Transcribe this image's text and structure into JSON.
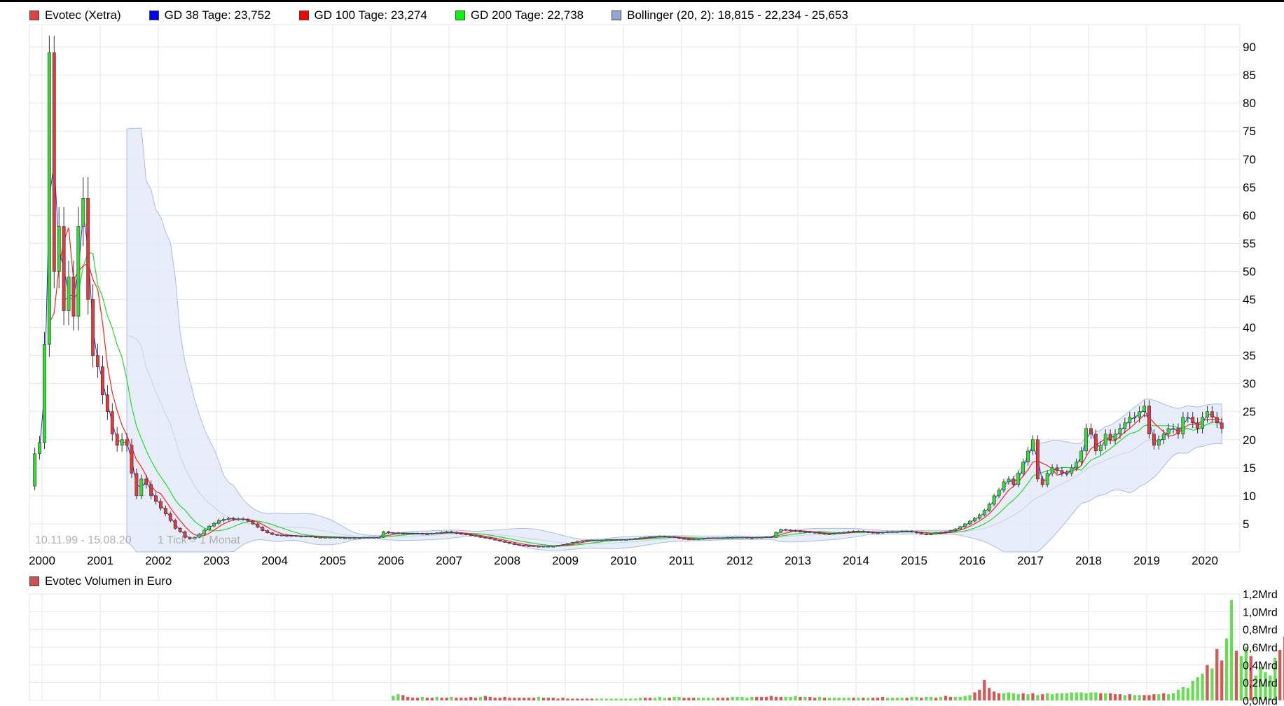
{
  "legend": {
    "items": [
      {
        "label": "Evotec (Xetra)",
        "color": "#e04040"
      },
      {
        "label": "GD 38 Tage: 23,752",
        "color": "#0000ff"
      },
      {
        "label": "GD 100 Tage: 23,274",
        "color": "#ff0000"
      },
      {
        "label": "GD 200 Tage: 22,738",
        "color": "#00ff00"
      },
      {
        "label": "Bollinger (20, 2): 18,815 - 22,234 - 25,653",
        "color": "#8fa8d8"
      }
    ],
    "volume_label": "Evotec Volumen in Euro",
    "volume_color": "#d05050"
  },
  "watermark": {
    "range": "10.11.99 - 15.08.20",
    "tick": "1 Tick = 1 Monat"
  },
  "chart_data": [
    {
      "type": "candlestick",
      "title": "Evotec (Xetra)",
      "x_ticks": [
        "2000",
        "2001",
        "2002",
        "2003",
        "2004",
        "2005",
        "2006",
        "2007",
        "2008",
        "2009",
        "2010",
        "2011",
        "2012",
        "2013",
        "2014",
        "2015",
        "2016",
        "2017",
        "2018",
        "2019",
        "2020"
      ],
      "x_range": [
        "1999-11",
        "2020-08"
      ],
      "y_ticks": [
        "5",
        "10",
        "15",
        "20",
        "25",
        "30",
        "35",
        "40",
        "45",
        "50",
        "55",
        "60",
        "65",
        "70",
        "75",
        "80",
        "85",
        "90"
      ],
      "ylim": [
        0,
        94
      ],
      "grid": true,
      "legend_position": "top-left",
      "monthly_close": [
        17.5,
        19.5,
        37,
        89,
        50,
        58,
        43,
        49,
        42,
        58,
        63,
        45,
        35,
        33,
        28,
        25,
        21,
        19,
        20,
        19,
        14,
        10,
        13,
        12,
        10,
        9,
        7.8,
        6.8,
        5.6,
        4.2,
        3.6,
        2.6,
        2.3,
        2.6,
        3.2,
        3.9,
        4.6,
        5.1,
        5.6,
        5.8,
        6,
        5.8,
        5.9,
        5.8,
        5.5,
        5,
        4.4,
        3.8,
        3.4,
        3.1,
        3,
        2.9,
        2.9,
        2.9,
        2.8,
        2.8,
        2.8,
        2.7,
        2.6,
        2.6,
        2.6,
        2.6,
        2.6,
        2.5,
        2.5,
        2.5,
        2.5,
        2.5,
        2.6,
        2.6,
        2.6,
        2.6,
        3.6,
        3.4,
        3.4,
        3.3,
        3.3,
        3.3,
        3.3,
        3.3,
        3.2,
        3.2,
        3.3,
        3.4,
        3.5,
        3.6,
        3.5,
        3.3,
        3.2,
        3.1,
        2.9,
        2.8,
        2.6,
        2.5,
        2.3,
        2.1,
        1.9,
        1.7,
        1.5,
        1.3,
        1.2,
        1.1,
        1.1,
        1,
        1,
        1,
        1,
        1,
        1.2,
        1.3,
        1.5,
        1.7,
        1.9,
        2,
        2.1,
        2.1,
        2.1,
        2.1,
        2.2,
        2.2,
        2.2,
        2.2,
        2.2,
        2.3,
        2.4,
        2.5,
        2.6,
        2.7,
        2.7,
        2.8,
        2.7,
        2.7,
        2.6,
        2.4,
        2.3,
        2.2,
        2.3,
        2.3,
        2.4,
        2.5,
        2.5,
        2.5,
        2.5,
        2.6,
        2.6,
        2.6,
        2.6,
        2.5,
        2.5,
        2.6,
        2.6,
        2.7,
        2.6,
        3.5,
        4,
        3.9,
        3.8,
        3.7,
        3.6,
        3.6,
        3.5,
        3.4,
        3.3,
        3.2,
        3.2,
        3.3,
        3.4,
        3.5,
        3.6,
        3.7,
        3.7,
        3.6,
        3.5,
        3.4,
        3.4,
        3.5,
        3.6,
        3.6,
        3.6,
        3.7,
        3.7,
        3.6,
        3.4,
        3.2,
        3.1,
        3.2,
        3.4,
        3.5,
        3.6,
        3.8,
        4.1,
        4.5,
        5,
        5.5,
        6,
        6.6,
        7.4,
        8.5,
        10,
        11,
        12.5,
        13,
        12,
        14,
        16,
        18,
        20,
        13,
        12,
        14,
        15,
        14.5,
        14,
        14,
        15,
        16,
        18,
        22,
        21,
        18,
        19,
        21,
        20,
        21,
        22,
        23,
        24,
        24,
        25,
        26,
        21,
        19,
        20,
        21,
        22,
        22,
        21,
        24,
        24,
        23,
        22,
        24,
        25,
        24,
        23,
        22
      ],
      "bollinger_band": {
        "lower": 18.815,
        "middle": 22.234,
        "upper": 25.653
      }
    },
    {
      "type": "bar",
      "title": "Evotec Volumen in Euro",
      "y_ticks": [
        "0,0Mrd",
        "0,2Mrd",
        "0,4Mrd",
        "0,6Mrd",
        "0,8Mrd",
        "1,0Mrd",
        "1,2Mrd"
      ],
      "ylim": [
        0,
        1.2
      ],
      "unit": "Mrd",
      "monthly_values_from_2006": [
        0.05,
        0.07,
        0.06,
        0.04,
        0.03,
        0.03,
        0.04,
        0.03,
        0.03,
        0.04,
        0.03,
        0.03,
        0.04,
        0.03,
        0.03,
        0.03,
        0.04,
        0.03,
        0.04,
        0.05,
        0.04,
        0.03,
        0.03,
        0.04,
        0.03,
        0.03,
        0.03,
        0.03,
        0.03,
        0.03,
        0.04,
        0.03,
        0.03,
        0.03,
        0.02,
        0.03,
        0.02,
        0.02,
        0.02,
        0.02,
        0.02,
        0.02,
        0.02,
        0.02,
        0.02,
        0.02,
        0.02,
        0.02,
        0.02,
        0.02,
        0.02,
        0.03,
        0.03,
        0.03,
        0.03,
        0.04,
        0.03,
        0.03,
        0.04,
        0.04,
        0.03,
        0.03,
        0.03,
        0.03,
        0.03,
        0.03,
        0.03,
        0.03,
        0.03,
        0.03,
        0.04,
        0.04,
        0.04,
        0.03,
        0.04,
        0.04,
        0.04,
        0.04,
        0.05,
        0.04,
        0.04,
        0.04,
        0.04,
        0.05,
        0.04,
        0.04,
        0.04,
        0.03,
        0.04,
        0.03,
        0.03,
        0.03,
        0.03,
        0.03,
        0.03,
        0.03,
        0.03,
        0.03,
        0.03,
        0.03,
        0.03,
        0.04,
        0.03,
        0.03,
        0.03,
        0.03,
        0.03,
        0.04,
        0.04,
        0.03,
        0.04,
        0.04,
        0.03,
        0.04,
        0.05,
        0.04,
        0.04,
        0.04,
        0.05,
        0.06,
        0.09,
        0.12,
        0.23,
        0.14,
        0.1,
        0.08,
        0.08,
        0.09,
        0.08,
        0.07,
        0.08,
        0.07,
        0.08,
        0.06,
        0.07,
        0.08,
        0.07,
        0.08,
        0.08,
        0.08,
        0.09,
        0.09,
        0.09,
        0.08,
        0.09,
        0.09,
        0.08,
        0.08,
        0.08,
        0.07,
        0.07,
        0.06,
        0.07,
        0.06,
        0.06,
        0.06,
        0.06,
        0.07,
        0.07,
        0.08,
        0.07,
        0.08,
        0.12,
        0.15,
        0.14,
        0.22,
        0.26,
        0.3,
        0.4,
        0.36,
        0.58,
        0.45,
        0.7,
        1.13,
        0.56,
        0.5,
        0.6,
        0.5,
        0.28,
        0.38,
        0.32,
        0.28,
        0.48,
        0.57,
        0.72,
        0.7,
        0.64,
        0.55,
        0.42,
        0.34,
        0.5,
        0.48,
        0.37,
        0.42,
        0.5,
        0.42,
        0.48,
        0.45,
        0.35,
        0.5,
        0.4,
        0.5,
        0.78,
        0.55,
        0.5,
        0.65,
        0.53,
        0.58,
        0.4,
        0.72,
        0.48,
        0.38,
        0.33,
        0.37,
        0.37,
        0.2
      ],
      "month_up_from_2006": [
        1,
        1,
        0,
        0,
        0,
        0,
        1,
        0,
        0,
        1,
        0,
        0,
        1,
        0,
        0,
        0,
        0,
        0,
        1,
        0,
        0,
        0,
        0,
        0,
        0,
        0,
        0,
        0,
        0,
        0,
        1,
        0,
        0,
        0,
        0,
        0,
        0,
        0,
        0,
        0,
        0,
        0,
        1,
        1,
        1,
        1,
        1,
        1,
        1,
        1,
        1,
        1,
        0,
        0,
        1,
        1,
        1,
        0,
        1,
        1,
        0,
        0,
        0,
        1,
        1,
        1,
        1,
        0,
        0,
        0,
        1,
        1,
        1,
        1,
        1,
        0,
        0,
        0,
        0,
        0,
        0,
        1,
        1,
        1,
        0,
        1,
        0,
        0,
        1,
        0,
        1,
        1,
        1,
        1,
        1,
        0,
        1,
        0,
        1,
        0,
        0,
        0,
        1,
        1,
        1,
        1,
        0,
        1,
        1,
        0,
        1,
        1,
        0,
        1,
        0,
        0,
        1,
        1,
        1,
        1,
        0,
        0,
        0,
        0,
        0,
        0,
        1,
        1,
        1,
        1,
        0,
        1,
        0,
        1,
        0,
        1,
        1,
        1,
        1,
        1,
        1,
        1,
        1,
        1,
        1,
        1,
        0,
        1,
        0,
        0,
        0,
        1,
        0,
        1,
        1,
        0,
        0,
        0,
        1,
        0,
        1,
        1,
        1,
        1,
        1,
        1,
        1,
        1,
        0,
        1,
        0,
        0,
        1,
        1,
        0,
        1,
        1,
        0,
        1,
        1,
        1,
        1,
        1,
        0,
        0,
        1,
        1,
        0,
        1,
        1,
        1,
        1,
        0,
        0,
        1,
        0,
        1,
        1,
        1,
        1,
        0,
        1,
        1,
        0,
        0,
        0,
        0,
        0,
        0,
        1,
        0,
        0,
        1,
        1,
        0,
        0,
        0,
        1,
        0,
        0,
        0
      ]
    }
  ]
}
